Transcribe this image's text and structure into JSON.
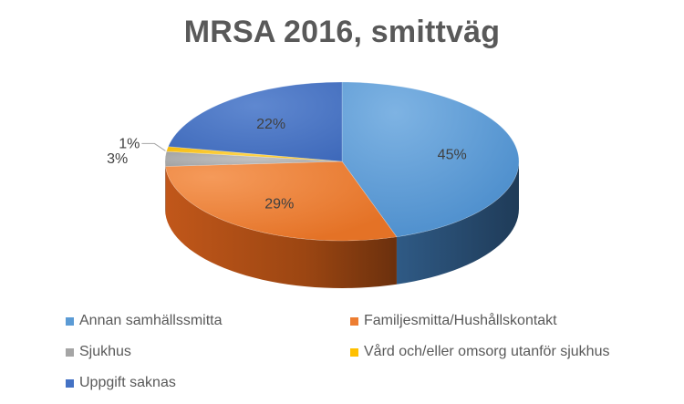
{
  "chart_data": {
    "type": "pie",
    "title": "MRSA 2016, smittväg",
    "categories": [
      "Annan samhällssmitta",
      "Familjesmitta/Hushållskontakt",
      "Sjukhus",
      "Vård och/eller omsorg utanför sjukhus",
      "Uppgift saknas"
    ],
    "values": [
      45,
      29,
      3,
      1,
      22
    ],
    "labels": [
      "45%",
      "29%",
      "3%",
      "1%",
      "22%"
    ],
    "colors": [
      "#5B9BD5",
      "#ED7D31",
      "#A5A5A5",
      "#FFC000",
      "#4472C4"
    ],
    "legend_position": "bottom"
  }
}
